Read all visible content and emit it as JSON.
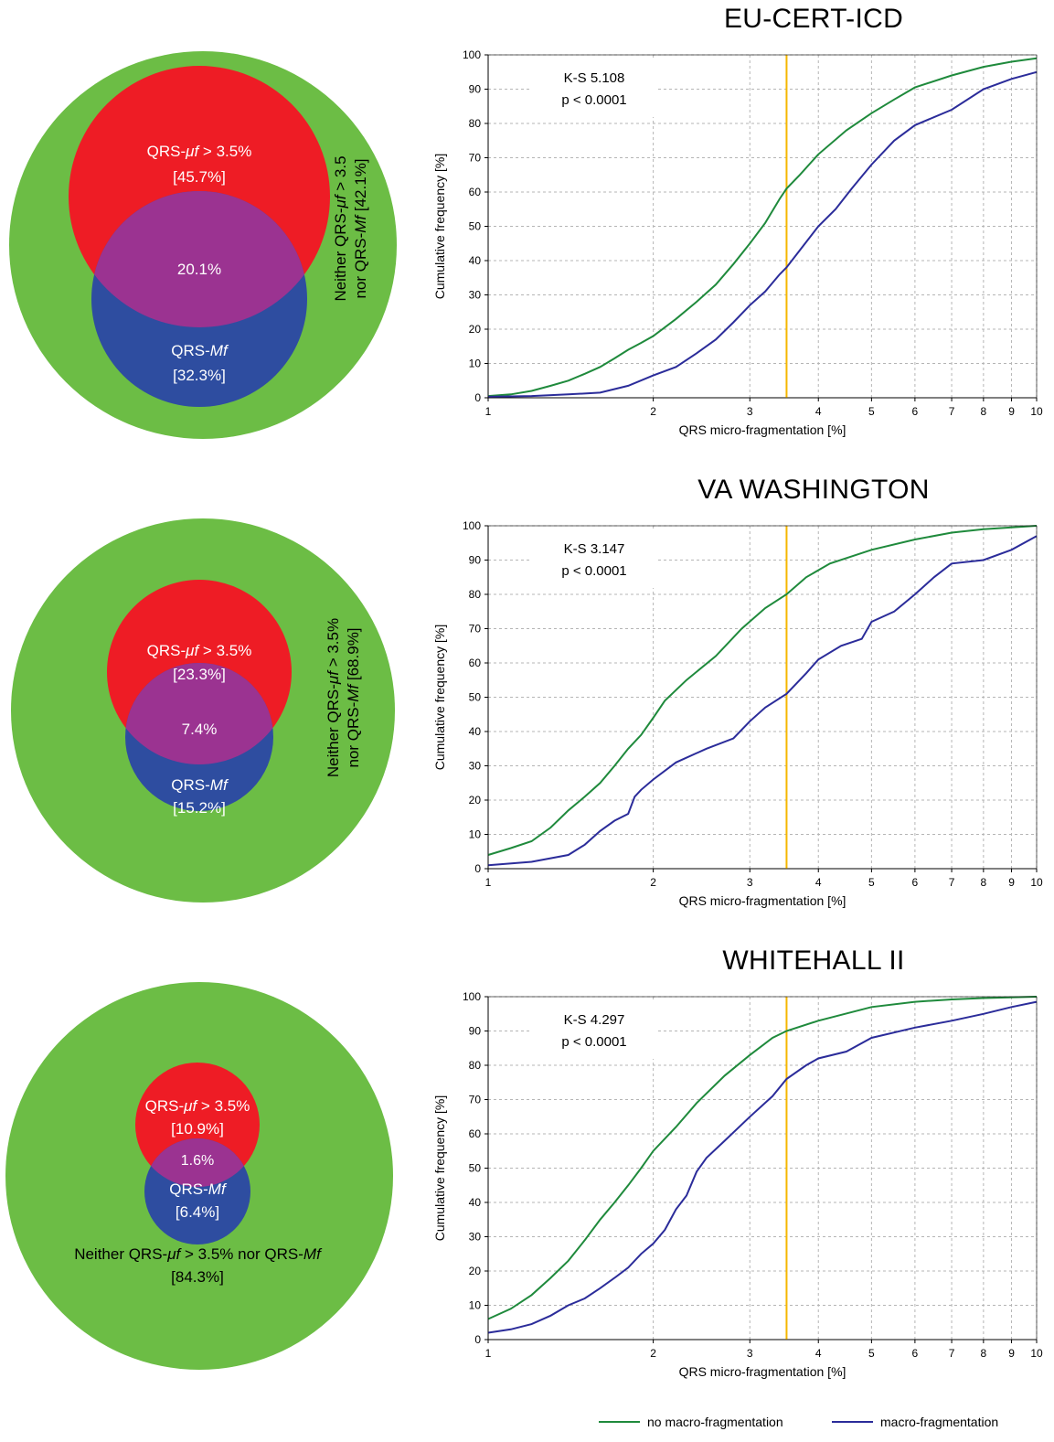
{
  "panels": [
    {
      "title": "EU-CERT-ICD",
      "venn": {
        "uf_label": "QRS-",
        "uf_italic": "μf",
        "uf_thr": " > 3.5%",
        "uf_pct": "[45.7%]",
        "overlap_pct": "20.1%",
        "mf_label": "QRS-",
        "mf_italic": "Mf",
        "mf_pct": "[32.3%]",
        "neither_line1_a": "Neither QRS-",
        "neither_line1_i": "μf",
        "neither_line1_b": " > 3.5",
        "neither_line2_a": "nor QRS-",
        "neither_line2_i": "Mf",
        "neither_line2_b": " [42.1%]"
      },
      "chart": {
        "ks_text": "K-S 5.108",
        "p_text": "p < 0.0001",
        "no_macro": [
          [
            1,
            0.5
          ],
          [
            1.1,
            1
          ],
          [
            1.2,
            2
          ],
          [
            1.3,
            3.5
          ],
          [
            1.4,
            5
          ],
          [
            1.5,
            7
          ],
          [
            1.6,
            9
          ],
          [
            1.7,
            11.5
          ],
          [
            1.8,
            14
          ],
          [
            1.9,
            16
          ],
          [
            2,
            18
          ],
          [
            2.2,
            23
          ],
          [
            2.4,
            28
          ],
          [
            2.6,
            33
          ],
          [
            2.8,
            39
          ],
          [
            3,
            45
          ],
          [
            3.2,
            51
          ],
          [
            3.4,
            58
          ],
          [
            3.5,
            61
          ],
          [
            3.7,
            65
          ],
          [
            4,
            71
          ],
          [
            4.5,
            78
          ],
          [
            5,
            83
          ],
          [
            5.5,
            87
          ],
          [
            6,
            90.5
          ],
          [
            7,
            94
          ],
          [
            8,
            96.5
          ],
          [
            9,
            98
          ],
          [
            10,
            99
          ]
        ],
        "macro": [
          [
            1,
            0.3
          ],
          [
            1.2,
            0.5
          ],
          [
            1.4,
            1
          ],
          [
            1.6,
            1.5
          ],
          [
            1.8,
            3.5
          ],
          [
            2,
            6.5
          ],
          [
            2.2,
            9
          ],
          [
            2.4,
            13
          ],
          [
            2.6,
            17
          ],
          [
            2.8,
            22
          ],
          [
            3,
            27
          ],
          [
            3.2,
            31
          ],
          [
            3.4,
            36
          ],
          [
            3.5,
            38
          ],
          [
            3.7,
            43
          ],
          [
            4,
            50
          ],
          [
            4.3,
            55
          ],
          [
            4.6,
            61
          ],
          [
            5,
            68
          ],
          [
            5.5,
            75
          ],
          [
            6,
            79.5
          ],
          [
            7,
            84
          ],
          [
            8,
            90
          ],
          [
            9,
            93
          ],
          [
            10,
            95
          ]
        ]
      }
    },
    {
      "title": "VA WASHINGTON",
      "venn": {
        "uf_label": "QRS-",
        "uf_italic": "μf",
        "uf_thr": " > 3.5%",
        "uf_pct": "[23.3%]",
        "overlap_pct": "7.4%",
        "mf_label": "QRS-",
        "mf_italic": "Mf",
        "mf_pct": "[15.2%]",
        "neither_line1_a": "Neither QRS-",
        "neither_line1_i": "μf",
        "neither_line1_b": " > 3.5%",
        "neither_line2_a": "nor QRS-",
        "neither_line2_i": "Mf",
        "neither_line2_b": " [68.9%]"
      },
      "chart": {
        "ks_text": "K-S 3.147",
        "p_text": "p < 0.0001",
        "no_macro": [
          [
            1,
            4
          ],
          [
            1.1,
            6
          ],
          [
            1.2,
            8
          ],
          [
            1.3,
            12
          ],
          [
            1.4,
            17
          ],
          [
            1.5,
            21
          ],
          [
            1.6,
            25
          ],
          [
            1.7,
            30
          ],
          [
            1.8,
            35
          ],
          [
            1.9,
            39
          ],
          [
            2,
            44
          ],
          [
            2.1,
            49
          ],
          [
            2.3,
            55
          ],
          [
            2.6,
            62
          ],
          [
            2.9,
            70
          ],
          [
            3.2,
            76
          ],
          [
            3.5,
            80
          ],
          [
            3.8,
            85
          ],
          [
            4.2,
            89
          ],
          [
            5,
            93
          ],
          [
            6,
            96
          ],
          [
            7,
            98
          ],
          [
            8,
            99
          ],
          [
            10,
            100
          ]
        ],
        "macro": [
          [
            1,
            1
          ],
          [
            1.2,
            2
          ],
          [
            1.4,
            4
          ],
          [
            1.5,
            7
          ],
          [
            1.6,
            11
          ],
          [
            1.7,
            14
          ],
          [
            1.8,
            16
          ],
          [
            1.85,
            21
          ],
          [
            1.9,
            23
          ],
          [
            2,
            26
          ],
          [
            2.2,
            31
          ],
          [
            2.5,
            35
          ],
          [
            2.8,
            38
          ],
          [
            3,
            43
          ],
          [
            3.2,
            47
          ],
          [
            3.5,
            51
          ],
          [
            3.8,
            57
          ],
          [
            4,
            61
          ],
          [
            4.4,
            65
          ],
          [
            4.8,
            67
          ],
          [
            5,
            72
          ],
          [
            5.5,
            75
          ],
          [
            6,
            80
          ],
          [
            6.5,
            85
          ],
          [
            7,
            89
          ],
          [
            8,
            90
          ],
          [
            9,
            93
          ],
          [
            10,
            97
          ]
        ]
      }
    },
    {
      "title": "WHITEHALL II",
      "venn": {
        "uf_label": "QRS-",
        "uf_italic": "μf",
        "uf_thr": " > 3.5%",
        "uf_pct": "[10.9%]",
        "overlap_pct": "1.6%",
        "mf_label": "QRS-",
        "mf_italic": "Mf",
        "mf_pct": "[6.4%]",
        "neither_line1_a": "Neither QRS-",
        "neither_line1_i": "μf",
        "neither_line1_b": " > 3.5% nor QRS-",
        "neither_line1_c": "Mf",
        "neither_line2_b": "[84.3%]"
      },
      "chart": {
        "ks_text": "K-S 4.297",
        "p_text": "p < 0.0001",
        "no_macro": [
          [
            1,
            6
          ],
          [
            1.1,
            9
          ],
          [
            1.2,
            13
          ],
          [
            1.3,
            18
          ],
          [
            1.4,
            23
          ],
          [
            1.5,
            29
          ],
          [
            1.6,
            35
          ],
          [
            1.7,
            40
          ],
          [
            1.8,
            45
          ],
          [
            1.9,
            50
          ],
          [
            2,
            55
          ],
          [
            2.2,
            62
          ],
          [
            2.4,
            69
          ],
          [
            2.7,
            77
          ],
          [
            3,
            83
          ],
          [
            3.3,
            88
          ],
          [
            3.5,
            90
          ],
          [
            4,
            93
          ],
          [
            5,
            97
          ],
          [
            6,
            98.5
          ],
          [
            7,
            99.2
          ],
          [
            8,
            99.6
          ],
          [
            10,
            100
          ]
        ],
        "macro": [
          [
            1,
            2
          ],
          [
            1.1,
            3
          ],
          [
            1.2,
            4.5
          ],
          [
            1.3,
            7
          ],
          [
            1.4,
            10
          ],
          [
            1.5,
            12
          ],
          [
            1.6,
            15
          ],
          [
            1.7,
            18
          ],
          [
            1.8,
            21
          ],
          [
            1.9,
            25
          ],
          [
            2,
            28
          ],
          [
            2.1,
            32
          ],
          [
            2.2,
            38
          ],
          [
            2.3,
            42
          ],
          [
            2.4,
            49
          ],
          [
            2.5,
            53
          ],
          [
            2.7,
            58
          ],
          [
            3,
            65
          ],
          [
            3.3,
            71
          ],
          [
            3.5,
            76
          ],
          [
            3.8,
            80
          ],
          [
            4,
            82
          ],
          [
            4.5,
            84
          ],
          [
            5,
            88
          ],
          [
            6,
            91
          ],
          [
            7,
            93
          ],
          [
            8,
            95
          ],
          [
            9,
            97
          ],
          [
            10,
            98.5
          ]
        ]
      }
    }
  ],
  "axes": {
    "xlabel": "QRS micro-fragmentation [%]",
    "ylabel": "Cumulative frequency [%]",
    "x_ticks": [
      "1",
      "2",
      "3",
      "4",
      "5",
      "6",
      "7",
      "8",
      "9",
      "10"
    ],
    "y_ticks": [
      "0",
      "10",
      "20",
      "30",
      "40",
      "50",
      "60",
      "70",
      "80",
      "90",
      "100"
    ]
  },
  "legend": {
    "no_macro": "no macro-fragmentation",
    "macro": "macro-fragmentation"
  },
  "colors": {
    "green_outer": "#6cbd45",
    "red": "#ee1c25",
    "overlap": "#9b3391",
    "blue": "#2e4da0",
    "line_green": "#1f8a3c",
    "line_blue": "#2b2c9a",
    "threshold": "#f5b700"
  },
  "chart_data": [
    {
      "type": "line",
      "title": "EU-CERT-ICD",
      "xlabel": "QRS micro-fragmentation [%]",
      "ylabel": "Cumulative frequency [%]",
      "x_scale": "log",
      "xlim": [
        1,
        10
      ],
      "ylim": [
        0,
        100
      ],
      "grid": true,
      "annotations": [
        "K-S 5.108",
        "p < 0.0001"
      ],
      "threshold_x": 3.5,
      "series": [
        {
          "name": "no macro-fragmentation",
          "x": [
            1,
            1.5,
            2,
            2.5,
            3,
            3.5,
            4,
            5,
            6,
            8,
            10
          ],
          "y": [
            0.5,
            7,
            18,
            31,
            45,
            61,
            71,
            83,
            90.5,
            96.5,
            99
          ]
        },
        {
          "name": "macro-fragmentation",
          "x": [
            1,
            1.5,
            2,
            2.5,
            3,
            3.5,
            4,
            5,
            6,
            8,
            10
          ],
          "y": [
            0.3,
            1.2,
            6.5,
            15,
            27,
            38,
            50,
            68,
            79.5,
            90,
            95
          ]
        }
      ]
    },
    {
      "type": "line",
      "title": "VA WASHINGTON",
      "xlabel": "QRS micro-fragmentation [%]",
      "ylabel": "Cumulative frequency [%]",
      "x_scale": "log",
      "xlim": [
        1,
        10
      ],
      "ylim": [
        0,
        100
      ],
      "grid": true,
      "annotations": [
        "K-S 3.147",
        "p < 0.0001"
      ],
      "threshold_x": 3.5,
      "series": [
        {
          "name": "no macro-fragmentation",
          "x": [
            1,
            1.5,
            2,
            2.5,
            3,
            3.5,
            4,
            5,
            6,
            8,
            10
          ],
          "y": [
            4,
            21,
            44,
            60,
            73,
            80,
            87,
            93,
            96,
            99,
            100
          ]
        },
        {
          "name": "macro-fragmentation",
          "x": [
            1,
            1.5,
            2,
            2.5,
            3,
            3.5,
            4,
            5,
            6,
            8,
            10
          ],
          "y": [
            1,
            7,
            26,
            35,
            43,
            51,
            61,
            72,
            80,
            90,
            97
          ]
        }
      ]
    },
    {
      "type": "line",
      "title": "WHITEHALL II",
      "xlabel": "QRS micro-fragmentation [%]",
      "ylabel": "Cumulative frequency [%]",
      "x_scale": "log",
      "xlim": [
        1,
        10
      ],
      "ylim": [
        0,
        100
      ],
      "grid": true,
      "annotations": [
        "K-S 4.297",
        "p < 0.0001"
      ],
      "threshold_x": 3.5,
      "series": [
        {
          "name": "no macro-fragmentation",
          "x": [
            1,
            1.5,
            2,
            2.5,
            3,
            3.5,
            4,
            5,
            6,
            8,
            10
          ],
          "y": [
            6,
            29,
            55,
            72,
            83,
            90,
            93,
            97,
            98.5,
            99.6,
            100
          ]
        },
        {
          "name": "macro-fragmentation",
          "x": [
            1,
            1.5,
            2,
            2.5,
            3,
            3.5,
            4,
            5,
            6,
            8,
            10
          ],
          "y": [
            2,
            12,
            28,
            53,
            65,
            76,
            82,
            88,
            91,
            95,
            98.5
          ]
        }
      ]
    }
  ]
}
